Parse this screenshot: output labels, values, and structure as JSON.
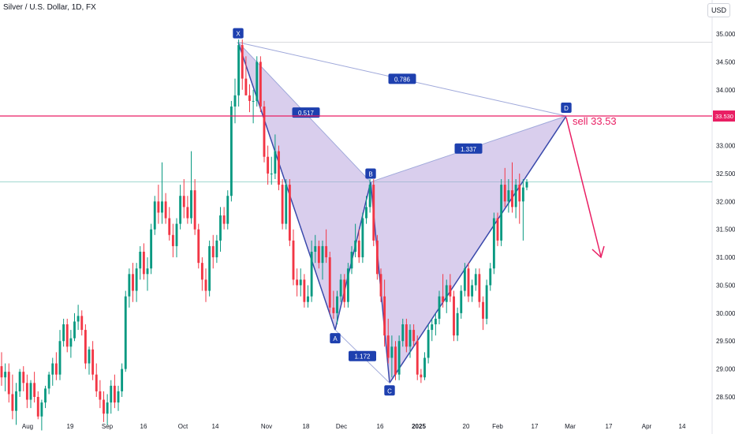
{
  "header": {
    "symbol": "Silver / U.S. Dollar, 1D, FX"
  },
  "currency": "USD",
  "colors": {
    "up": "#089981",
    "down": "#f23645",
    "pattern_fill": "#b39ddb",
    "pattern_line": "#3949ab",
    "sell_line": "#e91e63",
    "label_bg": "#1e40af"
  },
  "chart_data": {
    "type": "candlestick",
    "y_ticks": [
      "28.500",
      "29.000",
      "29.500",
      "30.000",
      "30.500",
      "31.000",
      "31.500",
      "32.000",
      "32.500",
      "33.000",
      "33.500",
      "34.000",
      "34.500",
      "35.000"
    ],
    "ylim": [
      28.2,
      35.3
    ],
    "x_ticks": [
      "Aug",
      "19",
      "Sep",
      "16",
      "Oct",
      "14",
      "Nov",
      "18",
      "Dec",
      "16",
      "2025",
      "20",
      "Feb",
      "17",
      "Mar",
      "17",
      "Apr",
      "14"
    ],
    "candles": [
      [
        29.05,
        29.3,
        28.7,
        28.85
      ],
      [
        28.85,
        29.1,
        28.6,
        28.95
      ],
      [
        28.95,
        29.1,
        28.4,
        28.55
      ],
      [
        28.55,
        28.9,
        28.1,
        28.25
      ],
      [
        28.25,
        28.75,
        28.0,
        28.6
      ],
      [
        28.6,
        29.0,
        28.5,
        28.95
      ],
      [
        28.95,
        29.05,
        28.6,
        28.75
      ],
      [
        28.75,
        28.9,
        28.3,
        28.45
      ],
      [
        28.45,
        28.8,
        28.3,
        28.75
      ],
      [
        28.75,
        28.95,
        28.4,
        28.5
      ],
      [
        28.5,
        28.6,
        28.1,
        28.15
      ],
      [
        28.15,
        28.45,
        27.9,
        28.4
      ],
      [
        28.4,
        28.7,
        28.3,
        28.65
      ],
      [
        28.65,
        28.95,
        28.55,
        28.9
      ],
      [
        28.9,
        29.2,
        28.7,
        29.1
      ],
      [
        29.1,
        29.3,
        28.8,
        28.9
      ],
      [
        28.9,
        29.7,
        28.8,
        29.5
      ],
      [
        29.5,
        29.9,
        29.4,
        29.8
      ],
      [
        29.8,
        29.9,
        29.3,
        29.4
      ],
      [
        29.4,
        29.7,
        29.2,
        29.55
      ],
      [
        29.55,
        30.0,
        29.5,
        29.85
      ],
      [
        29.85,
        30.15,
        29.7,
        29.95
      ],
      [
        29.95,
        30.05,
        29.6,
        29.7
      ],
      [
        29.7,
        29.8,
        29.0,
        29.1
      ],
      [
        29.1,
        29.4,
        28.9,
        29.35
      ],
      [
        29.35,
        29.5,
        28.8,
        28.9
      ],
      [
        28.9,
        29.1,
        28.5,
        28.6
      ],
      [
        28.6,
        28.8,
        28.3,
        28.45
      ],
      [
        28.45,
        28.6,
        28.05,
        28.2
      ],
      [
        28.2,
        28.55,
        28.0,
        28.4
      ],
      [
        28.4,
        28.8,
        28.2,
        28.7
      ],
      [
        28.7,
        28.9,
        28.3,
        28.4
      ],
      [
        28.4,
        28.7,
        28.25,
        28.6
      ],
      [
        28.6,
        29.1,
        28.5,
        29.0
      ],
      [
        29.0,
        30.4,
        28.95,
        30.3
      ],
      [
        30.3,
        30.8,
        30.1,
        30.7
      ],
      [
        30.7,
        30.9,
        30.2,
        30.4
      ],
      [
        30.4,
        30.9,
        30.2,
        30.8
      ],
      [
        30.8,
        31.2,
        30.6,
        31.1
      ],
      [
        31.1,
        31.25,
        30.6,
        30.7
      ],
      [
        30.7,
        31.0,
        30.4,
        30.8
      ],
      [
        30.8,
        31.6,
        30.7,
        31.5
      ],
      [
        31.5,
        32.1,
        31.4,
        32.0
      ],
      [
        32.0,
        32.3,
        31.6,
        31.8
      ],
      [
        31.8,
        32.7,
        31.6,
        32.0
      ],
      [
        32.0,
        32.15,
        31.6,
        31.7
      ],
      [
        31.7,
        31.9,
        31.3,
        31.4
      ],
      [
        31.4,
        31.6,
        31.0,
        31.2
      ],
      [
        31.2,
        31.7,
        31.0,
        31.6
      ],
      [
        31.6,
        32.3,
        31.5,
        32.1
      ],
      [
        32.1,
        32.4,
        31.7,
        31.9
      ],
      [
        31.9,
        32.1,
        31.6,
        31.7
      ],
      [
        31.7,
        32.9,
        31.6,
        32.2
      ],
      [
        32.2,
        32.4,
        31.4,
        31.5
      ],
      [
        31.5,
        31.6,
        30.8,
        30.9
      ],
      [
        30.9,
        31.0,
        30.4,
        30.6
      ],
      [
        30.6,
        30.8,
        30.2,
        30.4
      ],
      [
        30.4,
        31.3,
        30.3,
        31.2
      ],
      [
        31.2,
        31.4,
        30.8,
        31.0
      ],
      [
        31.0,
        31.4,
        30.9,
        31.3
      ],
      [
        31.3,
        31.9,
        31.1,
        31.75
      ],
      [
        31.75,
        31.9,
        31.5,
        31.6
      ],
      [
        31.6,
        32.2,
        31.5,
        32.1
      ],
      [
        32.1,
        33.8,
        32.0,
        33.7
      ],
      [
        33.7,
        34.2,
        33.4,
        33.9
      ],
      [
        33.9,
        34.9,
        33.7,
        34.8
      ],
      [
        34.8,
        34.9,
        34.0,
        34.2
      ],
      [
        34.2,
        34.6,
        33.9,
        33.9
      ],
      [
        33.9,
        34.1,
        33.6,
        33.8
      ],
      [
        33.8,
        34.0,
        33.4,
        33.8
      ],
      [
        33.8,
        34.6,
        33.7,
        34.5
      ],
      [
        34.5,
        34.6,
        33.6,
        33.7
      ],
      [
        33.7,
        33.8,
        32.7,
        32.8
      ],
      [
        32.8,
        33.0,
        32.3,
        32.5
      ],
      [
        32.5,
        32.8,
        32.3,
        32.5
      ],
      [
        32.5,
        33.2,
        32.4,
        32.9
      ],
      [
        32.9,
        33.0,
        32.2,
        32.3
      ],
      [
        32.3,
        32.4,
        31.5,
        31.6
      ],
      [
        31.6,
        32.4,
        31.5,
        32.3
      ],
      [
        32.3,
        32.4,
        31.2,
        31.3
      ],
      [
        31.3,
        31.5,
        30.5,
        30.6
      ],
      [
        30.6,
        30.8,
        30.3,
        30.5
      ],
      [
        30.5,
        30.8,
        30.3,
        30.6
      ],
      [
        30.6,
        30.7,
        30.1,
        30.2
      ],
      [
        30.2,
        30.5,
        30.1,
        30.3
      ],
      [
        30.3,
        31.3,
        30.2,
        31.1
      ],
      [
        31.1,
        31.4,
        30.9,
        31.2
      ],
      [
        31.2,
        31.3,
        30.8,
        30.9
      ],
      [
        30.9,
        31.3,
        30.6,
        31.2
      ],
      [
        31.2,
        31.5,
        30.9,
        31.0
      ],
      [
        31.0,
        31.1,
        30.0,
        30.1
      ],
      [
        30.1,
        30.4,
        29.9,
        30.0
      ],
      [
        30.0,
        30.4,
        29.8,
        30.3
      ],
      [
        30.3,
        30.7,
        30.2,
        30.6
      ],
      [
        30.6,
        30.7,
        30.1,
        30.2
      ],
      [
        30.2,
        30.9,
        30.1,
        30.8
      ],
      [
        30.8,
        31.2,
        30.7,
        31.1
      ],
      [
        31.1,
        31.6,
        31.0,
        31.3
      ],
      [
        31.3,
        31.5,
        30.9,
        31.0
      ],
      [
        31.0,
        31.8,
        30.9,
        31.7
      ],
      [
        31.7,
        32.1,
        31.6,
        31.9
      ],
      [
        31.9,
        32.4,
        31.8,
        32.3
      ],
      [
        32.3,
        32.4,
        31.2,
        31.3
      ],
      [
        31.3,
        31.4,
        30.6,
        30.7
      ],
      [
        30.7,
        30.8,
        30.2,
        30.3
      ],
      [
        30.3,
        30.6,
        29.4,
        29.6
      ],
      [
        29.6,
        29.9,
        29.1,
        29.2
      ],
      [
        29.2,
        29.6,
        28.85,
        29.4
      ],
      [
        29.4,
        29.5,
        28.8,
        28.9
      ],
      [
        28.9,
        29.6,
        28.8,
        29.5
      ],
      [
        29.5,
        29.9,
        29.4,
        29.8
      ],
      [
        29.8,
        29.9,
        29.3,
        29.4
      ],
      [
        29.4,
        29.8,
        29.2,
        29.7
      ],
      [
        29.7,
        29.8,
        29.4,
        29.5
      ],
      [
        29.5,
        29.6,
        28.8,
        28.9
      ],
      [
        28.9,
        29.0,
        28.75,
        28.85
      ],
      [
        28.85,
        29.3,
        28.8,
        29.2
      ],
      [
        29.2,
        29.8,
        29.1,
        29.7
      ],
      [
        29.7,
        29.9,
        29.5,
        29.8
      ],
      [
        29.8,
        30.0,
        29.6,
        29.9
      ],
      [
        29.9,
        30.4,
        29.8,
        30.3
      ],
      [
        30.3,
        30.7,
        30.1,
        30.2
      ],
      [
        30.2,
        30.6,
        30.0,
        30.5
      ],
      [
        30.5,
        30.7,
        30.2,
        30.3
      ],
      [
        30.3,
        30.4,
        29.5,
        29.6
      ],
      [
        29.6,
        30.1,
        29.5,
        30.0
      ],
      [
        30.0,
        30.5,
        29.9,
        30.4
      ],
      [
        30.4,
        30.9,
        30.3,
        30.8
      ],
      [
        30.8,
        30.9,
        30.2,
        30.3
      ],
      [
        30.3,
        30.6,
        30.2,
        30.5
      ],
      [
        30.5,
        30.8,
        30.4,
        30.7
      ],
      [
        30.7,
        30.8,
        30.1,
        30.2
      ],
      [
        30.2,
        30.3,
        29.7,
        29.9
      ],
      [
        29.9,
        30.6,
        29.8,
        30.5
      ],
      [
        30.5,
        30.9,
        30.4,
        30.8
      ],
      [
        30.8,
        31.8,
        30.7,
        31.7
      ],
      [
        31.7,
        31.8,
        31.2,
        31.3
      ],
      [
        31.3,
        32.4,
        31.2,
        32.3
      ],
      [
        32.3,
        32.6,
        31.9,
        32.0
      ],
      [
        32.0,
        32.4,
        31.8,
        32.2
      ],
      [
        32.2,
        32.7,
        31.8,
        31.9
      ],
      [
        31.9,
        32.4,
        31.7,
        32.3
      ],
      [
        32.3,
        32.5,
        31.6,
        32.0
      ],
      [
        32.0,
        32.4,
        31.3,
        32.25
      ],
      [
        32.25,
        32.4,
        32.2,
        32.35
      ]
    ],
    "pattern": {
      "points": [
        {
          "label": "X",
          "price": 34.85
        },
        {
          "label": "A",
          "price": 29.7
        },
        {
          "label": "B",
          "price": 32.35
        },
        {
          "label": "C",
          "price": 28.75
        },
        {
          "label": "D",
          "price": 33.53
        }
      ],
      "ratios": [
        "0.517",
        "0.786",
        "1.172",
        "1.337"
      ]
    },
    "sell_level": 33.53,
    "price_tag": "33.530",
    "sell_label": "sell 33.53"
  }
}
